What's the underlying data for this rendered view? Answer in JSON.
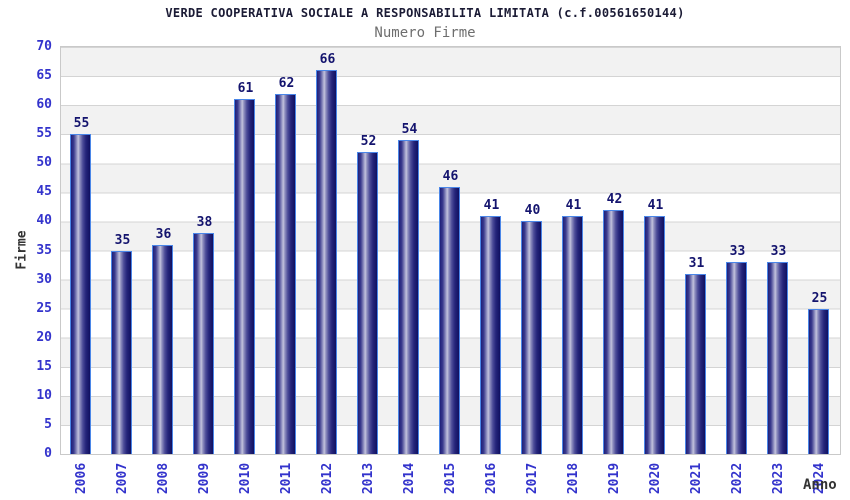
{
  "header": {
    "title": "VERDE COOPERATIVA SOCIALE A RESPONSABILITA LIMITATA (c.f.00561650144)",
    "subtitle": "Numero Firme"
  },
  "chart_data": {
    "type": "bar",
    "title": "VERDE COOPERATIVA SOCIALE A RESPONSABILITA LIMITATA (c.f.00561650144)",
    "subtitle": "Numero Firme",
    "xlabel": "Anno",
    "ylabel": "Firme",
    "categories": [
      "2006",
      "2007",
      "2008",
      "2009",
      "2010",
      "2011",
      "2012",
      "2013",
      "2014",
      "2015",
      "2016",
      "2017",
      "2018",
      "2019",
      "2020",
      "2021",
      "2022",
      "2023",
      "2024"
    ],
    "values": [
      55,
      35,
      36,
      38,
      61,
      62,
      66,
      52,
      54,
      46,
      41,
      40,
      41,
      42,
      41,
      31,
      33,
      33,
      25
    ],
    "ylim": [
      0,
      70
    ],
    "ytick_step": 5,
    "grid": true,
    "legend_position": "none",
    "value_labels_shown": true
  },
  "colors": {
    "title_navy": "#1b1b35",
    "subtitle_gray": "#6e6e6e",
    "axis_tick_blue": "#3333cc",
    "value_label_navy": "#14146e",
    "axis_title_gray": "#333333",
    "bar_dark_navy": "#101060",
    "bar_highlight": "#c2c2dc",
    "bar_border_blue": "#4a86e8",
    "band_gray": "#f2f2f2",
    "gridline_gray": "#d4d4d4",
    "plot_border_gray": "#c9c9c9",
    "background": "#ffffff"
  }
}
